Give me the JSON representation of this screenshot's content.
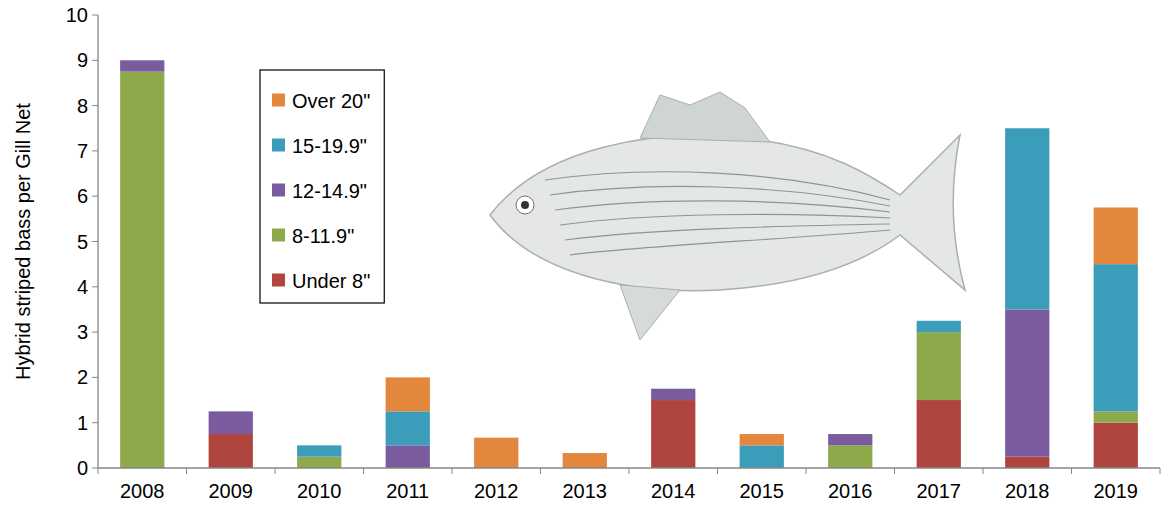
{
  "chart_data": {
    "type": "bar",
    "stacked": true,
    "y_label": "Hybrid striped bass per Gill Net",
    "categories": [
      "2008",
      "2009",
      "2010",
      "2011",
      "2012",
      "2013",
      "2014",
      "2015",
      "2016",
      "2017",
      "2018",
      "2019"
    ],
    "series": [
      {
        "name": "Under 8\"",
        "color": "#b0443f",
        "values": [
          0,
          0.75,
          0,
          0,
          0,
          0,
          1.5,
          0,
          0,
          1.5,
          0.25,
          1.0
        ]
      },
      {
        "name": "8-11.9\"",
        "color": "#8da94a",
        "values": [
          8.75,
          0,
          0.25,
          0,
          0,
          0,
          0,
          0,
          0.5,
          1.5,
          0,
          0.25
        ]
      },
      {
        "name": "12-14.9\"",
        "color": "#7a5c9e",
        "values": [
          0.25,
          0.5,
          0,
          0.5,
          0,
          0,
          0.25,
          0,
          0.25,
          0,
          3.25,
          0
        ]
      },
      {
        "name": "15-19.9\"",
        "color": "#3c9dba",
        "values": [
          0,
          0,
          0.25,
          0.75,
          0,
          0,
          0,
          0.5,
          0,
          0.25,
          4.0,
          3.25
        ]
      },
      {
        "name": "Over 20\"",
        "color": "#e2873c",
        "values": [
          0,
          0,
          0,
          0.75,
          0.67,
          0.33,
          0,
          0.25,
          0,
          0,
          0,
          1.25
        ]
      }
    ],
    "ylim": [
      0,
      10
    ],
    "yticks": [
      0,
      1,
      2,
      3,
      4,
      5,
      6,
      7,
      8,
      9,
      10
    ],
    "grid": false,
    "legend": "upper left"
  }
}
